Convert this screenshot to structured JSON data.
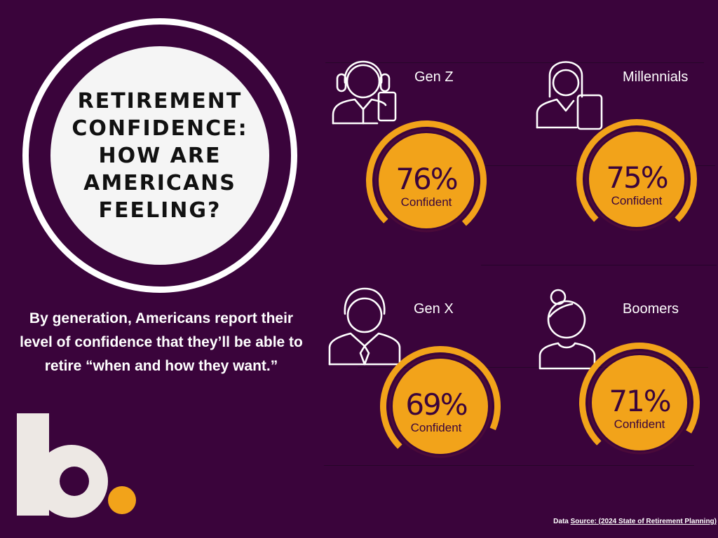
{
  "title_lines": [
    "RETIREMENT",
    "CONFIDENCE:",
    "HOW ARE",
    "AMERICANS",
    "FEELING?"
  ],
  "subtitle": "By generation, Americans report their level of confidence that they’ll be able to retire “when and how they want.”",
  "logo": {
    "letter": "b."
  },
  "source": {
    "prefix": "Data ",
    "link_text": "Source: (2024 State of Retirement Planning)"
  },
  "colors": {
    "background": "#3a043b",
    "accent": "#f2a31a",
    "text_dark": "#3a043b",
    "text_light": "#ffffff"
  },
  "chart_data": {
    "type": "pie",
    "unit": "%",
    "value_label": "Confident",
    "series": [
      {
        "name": "Gen Z",
        "value": 76,
        "icon": "headset-person-phone-icon"
      },
      {
        "name": "Millennials",
        "value": 75,
        "icon": "woman-phone-icon"
      },
      {
        "name": "Gen X",
        "value": 69,
        "icon": "businessman-icon"
      },
      {
        "name": "Boomers",
        "value": 71,
        "icon": "woman-bun-icon"
      }
    ]
  }
}
